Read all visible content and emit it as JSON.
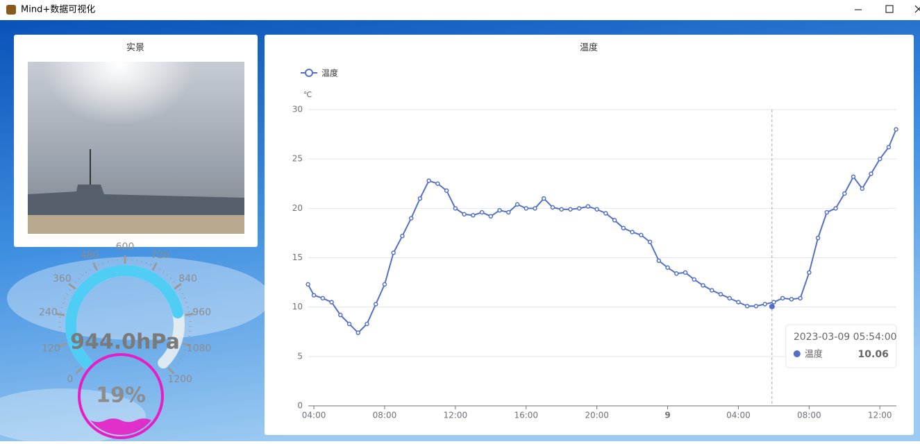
{
  "window": {
    "title": "Mind+数据可视化"
  },
  "scene": {
    "title": "实景"
  },
  "gauge": {
    "value": 944,
    "value_label": "944.0hPa",
    "range": [
      0,
      1200
    ],
    "ticks": [
      0,
      120,
      240,
      360,
      480,
      600,
      720,
      840,
      960,
      1080,
      1200
    ]
  },
  "liquid": {
    "value": 19,
    "value_label": "19%"
  },
  "chart_data": {
    "type": "line",
    "title": "温度",
    "y_label": "℃",
    "x": [
      "2023-03-08 03:40",
      "2023-03-08 04:00",
      "2023-03-08 04:30",
      "2023-03-08 05:00",
      "2023-03-08 05:30",
      "2023-03-08 06:00",
      "2023-03-08 06:30",
      "2023-03-08 07:00",
      "2023-03-08 07:30",
      "2023-03-08 08:00",
      "2023-03-08 08:30",
      "2023-03-08 09:00",
      "2023-03-08 09:30",
      "2023-03-08 10:00",
      "2023-03-08 10:30",
      "2023-03-08 11:00",
      "2023-03-08 11:30",
      "2023-03-08 12:00",
      "2023-03-08 12:30",
      "2023-03-08 13:00",
      "2023-03-08 13:30",
      "2023-03-08 14:00",
      "2023-03-08 14:30",
      "2023-03-08 15:00",
      "2023-03-08 15:30",
      "2023-03-08 16:00",
      "2023-03-08 16:30",
      "2023-03-08 17:00",
      "2023-03-08 17:30",
      "2023-03-08 18:00",
      "2023-03-08 18:30",
      "2023-03-08 19:00",
      "2023-03-08 19:30",
      "2023-03-08 20:00",
      "2023-03-08 20:30",
      "2023-03-08 21:00",
      "2023-03-08 21:30",
      "2023-03-08 22:00",
      "2023-03-08 22:30",
      "2023-03-08 23:00",
      "2023-03-08 23:30",
      "2023-03-09 00:00",
      "2023-03-09 00:30",
      "2023-03-09 01:00",
      "2023-03-09 01:30",
      "2023-03-09 02:00",
      "2023-03-09 02:30",
      "2023-03-09 03:00",
      "2023-03-09 03:30",
      "2023-03-09 04:00",
      "2023-03-09 04:30",
      "2023-03-09 05:00",
      "2023-03-09 05:30",
      "2023-03-09 06:00",
      "2023-03-09 06:30",
      "2023-03-09 07:00",
      "2023-03-09 07:30",
      "2023-03-09 08:00",
      "2023-03-09 08:30",
      "2023-03-09 09:00",
      "2023-03-09 09:30",
      "2023-03-09 10:00",
      "2023-03-09 10:30",
      "2023-03-09 11:00",
      "2023-03-09 11:30",
      "2023-03-09 12:00",
      "2023-03-09 12:30",
      "2023-03-09 12:55"
    ],
    "series": [
      {
        "name": "温度",
        "color": "#5470c6",
        "values": [
          12.3,
          11.2,
          10.9,
          10.5,
          9.2,
          8.3,
          7.4,
          8.3,
          10.3,
          12.3,
          15.5,
          17.2,
          19.0,
          21.0,
          22.8,
          22.5,
          21.8,
          20.0,
          19.4,
          19.3,
          19.6,
          19.2,
          19.8,
          19.6,
          20.4,
          20.0,
          20.0,
          21.0,
          20.1,
          19.9,
          19.9,
          20.0,
          20.2,
          19.9,
          19.5,
          18.8,
          18.0,
          17.6,
          17.3,
          16.6,
          14.7,
          14.0,
          13.4,
          13.5,
          12.8,
          12.2,
          11.7,
          11.3,
          10.9,
          10.5,
          10.1,
          10.1,
          10.3,
          10.5,
          10.9,
          10.8,
          10.9,
          13.5,
          17.0,
          19.6,
          20.0,
          21.5,
          23.2,
          22.0,
          23.5,
          25.0,
          26.2,
          28.0
        ]
      }
    ],
    "xlim": [
      "2023-03-08 03:41",
      "2023-03-09 12:56"
    ],
    "xticks": [
      {
        "value": "2023-03-08 04:00",
        "label": "04:00"
      },
      {
        "value": "2023-03-08 08:00",
        "label": "08:00"
      },
      {
        "value": "2023-03-08 12:00",
        "label": "12:00"
      },
      {
        "value": "2023-03-08 16:00",
        "label": "16:00"
      },
      {
        "value": "2023-03-08 20:00",
        "label": "20:00"
      },
      {
        "value": "2023-03-09 00:00",
        "label": "9"
      },
      {
        "value": "2023-03-09 04:00",
        "label": "04:00"
      },
      {
        "value": "2023-03-09 08:00",
        "label": "08:00"
      },
      {
        "value": "2023-03-09 12:00",
        "label": "12:00"
      }
    ],
    "ylim": [
      0,
      30
    ],
    "yticks": [
      0,
      5,
      10,
      15,
      20,
      25,
      30
    ],
    "grid": true,
    "tooltip": {
      "x": "2023-03-09 05:54:00",
      "value": 10.06
    }
  }
}
